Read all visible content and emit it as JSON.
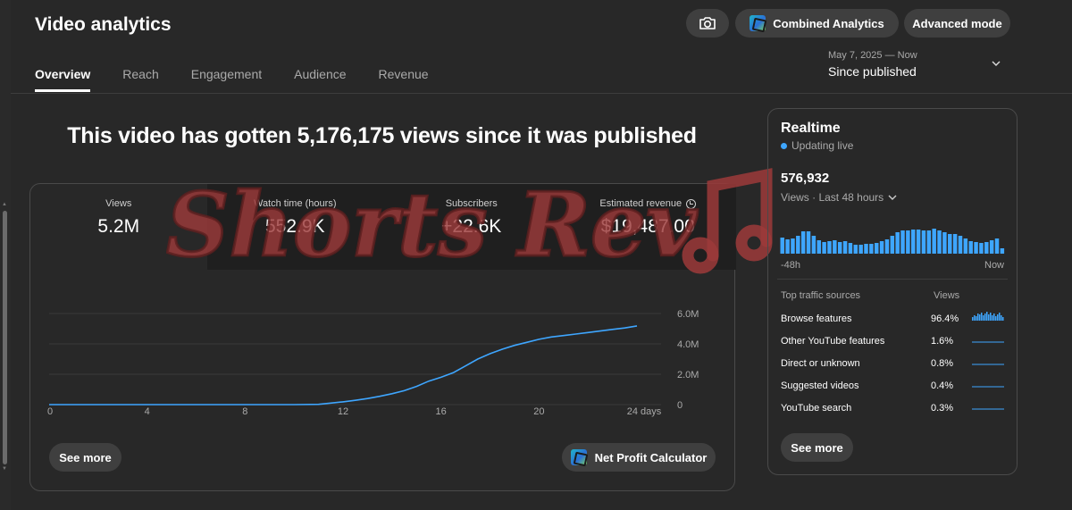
{
  "page_title": "Video analytics",
  "tabs": [
    {
      "label": "Overview",
      "active": true
    },
    {
      "label": "Reach",
      "active": false
    },
    {
      "label": "Engagement",
      "active": false
    },
    {
      "label": "Audience",
      "active": false
    },
    {
      "label": "Revenue",
      "active": false
    }
  ],
  "header": {
    "combined_label": "Combined Analytics",
    "advanced_label": "Advanced mode",
    "camera_icon": "camera-icon",
    "badge_icon": "tool-logo-icon"
  },
  "date_range": {
    "range": "May 7, 2025 — Now",
    "value": "Since published"
  },
  "headline": "This video has gotten 5,176,175 views since it was published",
  "metrics": [
    {
      "label": "Views",
      "value": "5.2M"
    },
    {
      "label": "Watch time (hours)",
      "value": "552.9K"
    },
    {
      "label": "Subscribers",
      "value": "+22.6K"
    },
    {
      "label": "Estimated revenue",
      "value": "$19,487.00"
    }
  ],
  "watermark_text": "Shorts Rev",
  "chart_data": {
    "type": "line",
    "x": [
      0,
      1,
      2,
      3,
      4,
      5,
      6,
      7,
      8,
      9,
      10,
      11,
      11.5,
      12,
      12.5,
      13,
      13.5,
      14,
      14.5,
      15,
      15.5,
      16,
      16.5,
      17,
      17.5,
      18,
      18.5,
      19,
      19.5,
      20,
      20.5,
      21,
      21.5,
      22,
      22.5,
      23,
      23.5,
      24
    ],
    "y": [
      0,
      0,
      0,
      0,
      0,
      0,
      0,
      0,
      0,
      0,
      0,
      0.02,
      0.1,
      0.18,
      0.28,
      0.4,
      0.55,
      0.72,
      0.92,
      1.2,
      1.55,
      1.8,
      2.1,
      2.55,
      3.0,
      3.35,
      3.65,
      3.9,
      4.1,
      4.3,
      4.45,
      4.55,
      4.65,
      4.75,
      4.85,
      4.95,
      5.05,
      5.18
    ],
    "x_ticks": [
      "0",
      "4",
      "8",
      "12",
      "16",
      "20",
      "24 days"
    ],
    "x_tick_values": [
      0,
      4,
      8,
      12,
      16,
      20,
      24
    ],
    "y_ticks": [
      "0",
      "2.0M",
      "4.0M",
      "6.0M"
    ],
    "y_tick_values": [
      0,
      2,
      4,
      6
    ],
    "ylim": [
      0,
      6
    ],
    "xlim": [
      0,
      24
    ],
    "grid": true,
    "color": "#3ea6ff"
  },
  "buttons": {
    "see_more": "See more",
    "net_profit": "Net Profit Calculator"
  },
  "realtime": {
    "title": "Realtime",
    "status": "Updating live",
    "count": "576,932",
    "caption": "Views · Last 48 hours",
    "axis_left": "-48h",
    "axis_right": "Now",
    "bars": [
      18,
      16,
      17,
      20,
      25,
      25,
      20,
      15,
      13,
      14,
      15,
      13,
      14,
      12,
      10,
      10,
      11,
      11,
      12,
      14,
      16,
      20,
      24,
      26,
      26,
      27,
      27,
      26,
      26,
      28,
      26,
      24,
      22,
      22,
      20,
      17,
      14,
      13,
      12,
      13,
      15,
      17,
      6
    ],
    "bar_color": "#3ea6ff",
    "see_more": "See more"
  },
  "traffic": {
    "title": "Top traffic sources",
    "views_header": "Views",
    "rows": [
      {
        "source": "Browse features",
        "pct": "96.4%",
        "spark": "active"
      },
      {
        "source": "Other YouTube features",
        "pct": "1.6%",
        "spark": "flat"
      },
      {
        "source": "Direct or unknown",
        "pct": "0.8%",
        "spark": "flat"
      },
      {
        "source": "Suggested videos",
        "pct": "0.4%",
        "spark": "flat"
      },
      {
        "source": "YouTube search",
        "pct": "0.3%",
        "spark": "flat"
      }
    ]
  }
}
